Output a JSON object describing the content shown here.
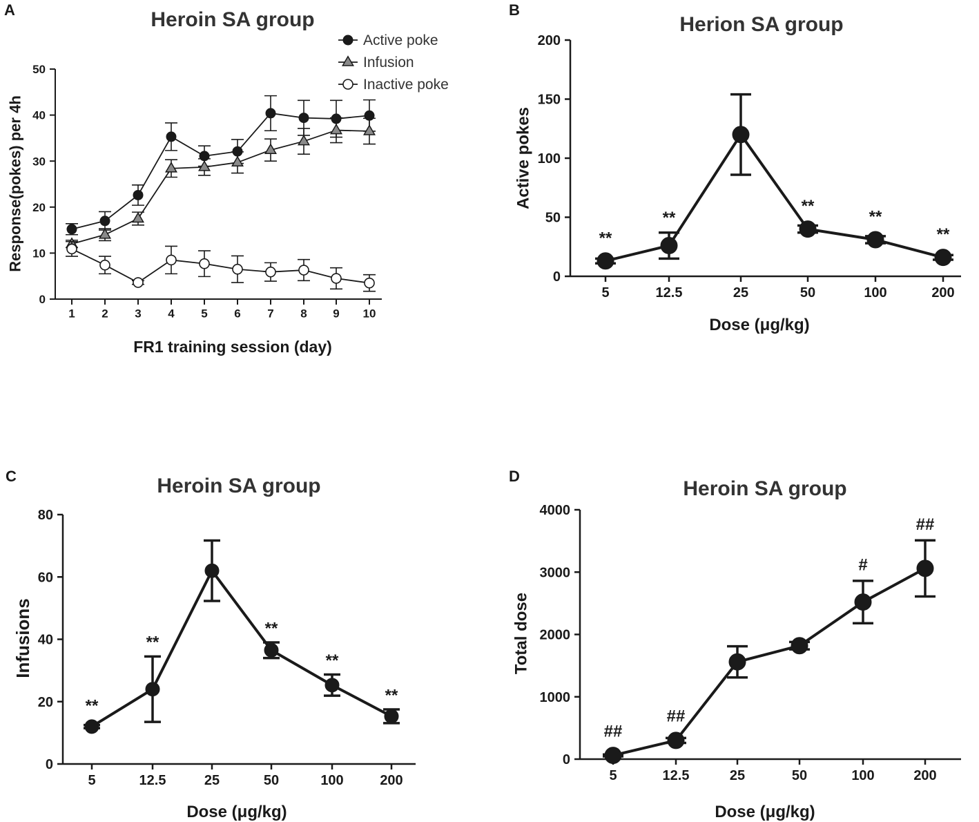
{
  "chart_data": [
    {
      "panel_label": "A",
      "type": "line",
      "title": "Heroin SA group",
      "xlabel": "FR1 training session (day)",
      "ylabel": "Response(pokes) per 4h",
      "categories": [
        "1",
        "2",
        "3",
        "4",
        "5",
        "6",
        "7",
        "8",
        "9",
        "10"
      ],
      "ylim": [
        0,
        50
      ],
      "yticks": [
        "0",
        "10",
        "20",
        "30",
        "40",
        "50"
      ],
      "legend_position": "top-right",
      "series": [
        {
          "name": "Active poke",
          "marker": "filled-circle",
          "values": [
            15.2,
            17.0,
            22.6,
            35.3,
            31.1,
            32.1,
            40.4,
            39.4,
            39.2,
            39.9
          ],
          "errors": [
            1.2,
            2.0,
            2.2,
            3.0,
            2.2,
            2.6,
            3.8,
            3.8,
            4.0,
            3.4
          ]
        },
        {
          "name": "Infusion",
          "marker": "gray-triangle",
          "values": [
            12.0,
            14.0,
            17.5,
            28.4,
            28.7,
            29.7,
            32.4,
            34.3,
            36.7,
            36.5
          ],
          "errors": [
            0.8,
            1.3,
            1.4,
            1.9,
            1.8,
            2.3,
            2.4,
            2.8,
            2.7,
            2.8
          ]
        },
        {
          "name": "Inactive poke",
          "marker": "open-circle",
          "values": [
            10.9,
            7.4,
            3.6,
            8.5,
            7.7,
            6.5,
            5.9,
            6.3,
            4.5,
            3.5
          ],
          "errors": [
            1.6,
            1.9,
            0.4,
            3.0,
            2.8,
            2.9,
            2.0,
            2.3,
            2.3,
            1.8
          ]
        }
      ]
    },
    {
      "panel_label": "B",
      "type": "line",
      "title": "Herion SA group",
      "xlabel": "Dose (μg/kg)",
      "ylabel": "Active pokes",
      "categories": [
        "5",
        "12.5",
        "25",
        "50",
        "100",
        "200"
      ],
      "ylim": [
        0,
        200
      ],
      "yticks": [
        "0",
        "50",
        "100",
        "150",
        "200"
      ],
      "series": [
        {
          "name": "Active pokes",
          "marker": "filled-circle",
          "values": [
            13,
            26,
            120,
            40,
            31,
            16
          ],
          "errors": [
            2,
            11,
            34,
            3,
            3,
            2
          ]
        }
      ],
      "annotations": [
        "**",
        "**",
        "",
        "**",
        "**",
        "**"
      ]
    },
    {
      "panel_label": "C",
      "type": "line",
      "title": "Heroin SA group",
      "xlabel": "Dose (μg/kg)",
      "ylabel": "Infusions",
      "categories": [
        "5",
        "12.5",
        "25",
        "50",
        "100",
        "200"
      ],
      "ylim": [
        0,
        80
      ],
      "yticks": [
        "0",
        "20",
        "40",
        "60",
        "80"
      ],
      "series": [
        {
          "name": "Infusions",
          "marker": "filled-circle",
          "values": [
            12,
            24,
            62,
            36.5,
            25.3,
            15.3
          ],
          "errors": [
            0.5,
            10.5,
            9.7,
            2.5,
            3.4,
            2.2
          ]
        }
      ],
      "annotations": [
        "**",
        "**",
        "",
        "**",
        "**",
        "**"
      ]
    },
    {
      "panel_label": "D",
      "type": "line",
      "title": "Heroin SA group",
      "xlabel": "Dose (μg/kg)",
      "ylabel": "Total dose",
      "categories": [
        "5",
        "12.5",
        "25",
        "50",
        "100",
        "200"
      ],
      "ylim": [
        0,
        4000
      ],
      "yticks": [
        "0",
        "1000",
        "2000",
        "3000",
        "4000"
      ],
      "series": [
        {
          "name": "Total dose",
          "marker": "filled-circle",
          "values": [
            60,
            300,
            1560,
            1820,
            2520,
            3060
          ],
          "errors": [
            15,
            40,
            250,
            60,
            340,
            450
          ]
        }
      ],
      "annotations": [
        "##",
        "##",
        "",
        "",
        "#",
        "##"
      ]
    }
  ]
}
